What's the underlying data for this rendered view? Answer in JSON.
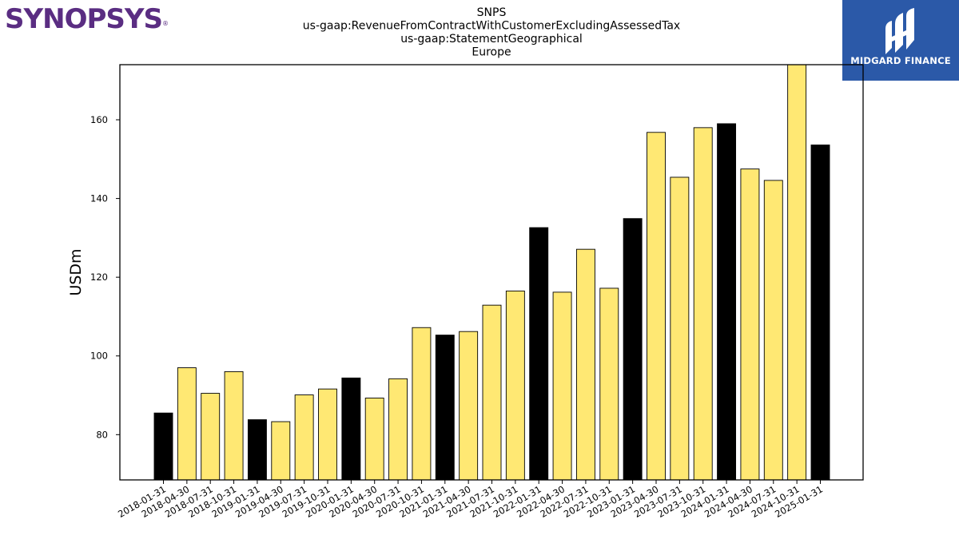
{
  "logos": {
    "left_brand": "SYNOPSYS",
    "left_brand_mark": "®",
    "right_brand": "MIDGARD FINANCE"
  },
  "colors": {
    "bar_default": "#ffe873",
    "bar_highlight": "#000000",
    "bar_outline": "#000000",
    "brand_purple": "#5a2d82",
    "brand_blue": "#2b59a8"
  },
  "chart_data": {
    "type": "bar",
    "title_lines": [
      "SNPS",
      "us-gaap:RevenueFromContractWithCustomerExcludingAssessedTax",
      "us-gaap:StatementGeographical",
      "Europe"
    ],
    "xlabel": "",
    "ylabel": "USDm",
    "ylim": [
      68.5,
      174
    ],
    "yticks": [
      80,
      100,
      120,
      140,
      160
    ],
    "grid": false,
    "categories": [
      "2018-01-31",
      "2018-04-30",
      "2018-07-31",
      "2018-10-31",
      "2019-01-31",
      "2019-04-30",
      "2019-07-31",
      "2019-10-31",
      "2020-01-31",
      "2020-04-30",
      "2020-07-31",
      "2020-10-31",
      "2021-01-31",
      "2021-04-30",
      "2021-07-31",
      "2021-10-31",
      "2022-01-31",
      "2022-04-30",
      "2022-07-31",
      "2022-10-31",
      "2023-01-31",
      "2023-04-30",
      "2023-07-31",
      "2023-10-31",
      "2024-01-31",
      "2024-04-30",
      "2024-07-31",
      "2024-10-31",
      "2025-01-31"
    ],
    "values": [
      85.5,
      97.0,
      90.5,
      96.0,
      83.8,
      83.3,
      90.1,
      91.6,
      94.4,
      89.3,
      94.2,
      107.2,
      105.3,
      106.2,
      112.9,
      116.5,
      132.6,
      116.2,
      127.1,
      117.2,
      134.9,
      156.8,
      145.4,
      158.0,
      159.0,
      147.5,
      144.6,
      174.0,
      153.6
    ],
    "highlighted": [
      true,
      false,
      false,
      false,
      true,
      false,
      false,
      false,
      true,
      false,
      false,
      false,
      true,
      false,
      false,
      false,
      true,
      false,
      false,
      false,
      true,
      false,
      false,
      false,
      true,
      false,
      false,
      false,
      true
    ]
  }
}
